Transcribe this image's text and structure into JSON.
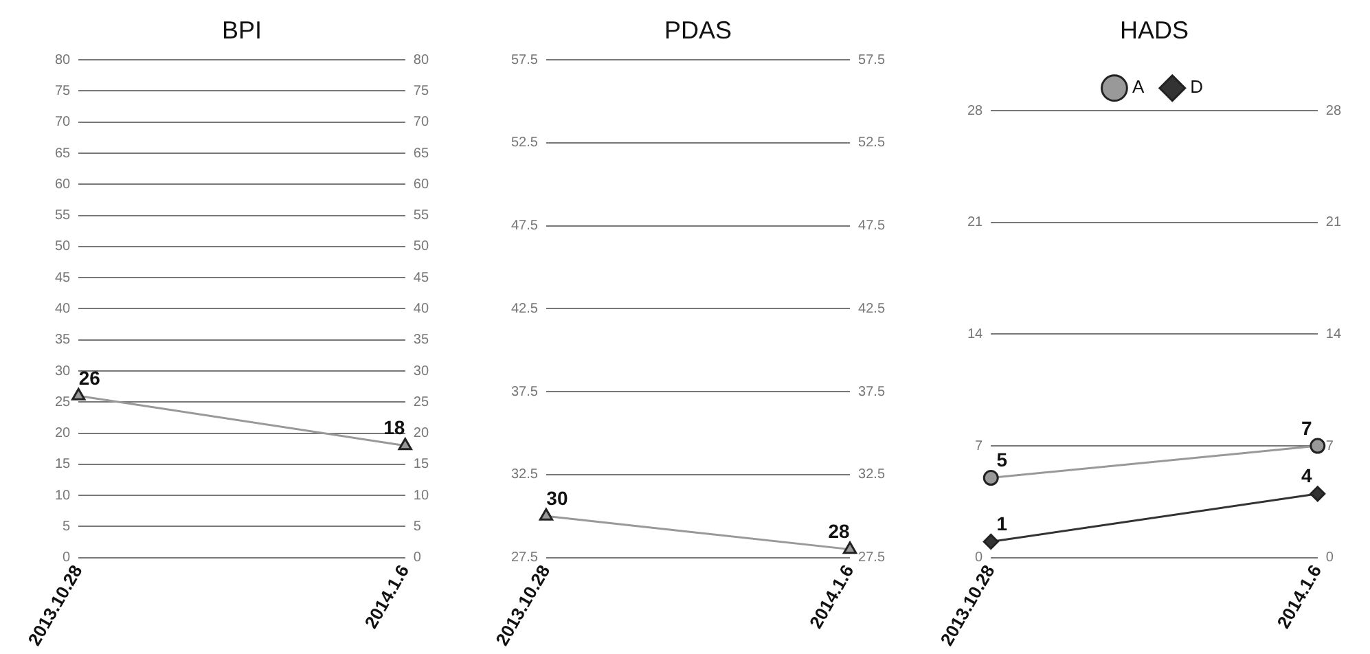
{
  "chart_data": [
    {
      "type": "line",
      "title": "BPI",
      "categories": [
        "2013.10.28",
        "2014.1.6"
      ],
      "series": [
        {
          "color": "#999999",
          "values": [
            26,
            18
          ],
          "marker": "triangle"
        }
      ],
      "ylim": [
        0,
        80
      ],
      "yticks": [
        0,
        5,
        10,
        15,
        20,
        25,
        30,
        35,
        40,
        45,
        50,
        55,
        60,
        65,
        70,
        75,
        80
      ],
      "y2lim": [
        0,
        80
      ],
      "y2ticks": [
        0,
        5,
        10,
        15,
        20,
        25,
        30,
        35,
        40,
        45,
        50,
        55,
        60,
        65,
        70,
        75,
        80
      ],
      "grid": "y",
      "data_labels": true
    },
    {
      "type": "line",
      "title": "PDAS",
      "categories": [
        "2013.10.28",
        "2014.1.6"
      ],
      "series": [
        {
          "color": "#999999",
          "values": [
            30,
            28
          ],
          "marker": "triangle"
        }
      ],
      "ylim": [
        27.5,
        57.5
      ],
      "yticks": [
        27.5,
        32.5,
        37.5,
        42.5,
        47.5,
        52.5,
        57.5
      ],
      "y2lim": [
        27.5,
        57.5
      ],
      "y2ticks": [
        27.5,
        32.5,
        37.5,
        42.5,
        47.5,
        52.5,
        57.5
      ],
      "grid": "y",
      "data_labels": true
    },
    {
      "type": "line",
      "title": "HADS",
      "categories": [
        "2013.10.28",
        "2014.1.6"
      ],
      "series": [
        {
          "name": "A",
          "color": "#999999",
          "values": [
            5,
            7
          ],
          "marker": "circle"
        },
        {
          "name": "D",
          "color": "#333333",
          "values": [
            1,
            4
          ],
          "marker": "diamond"
        }
      ],
      "ylim": [
        0,
        28
      ],
      "yticks": [
        0,
        7,
        14,
        21,
        28
      ],
      "y2lim": [
        0,
        28
      ],
      "y2ticks": [
        0,
        7,
        14,
        21,
        28
      ],
      "grid": "y",
      "legend": "top",
      "data_labels": true
    }
  ]
}
